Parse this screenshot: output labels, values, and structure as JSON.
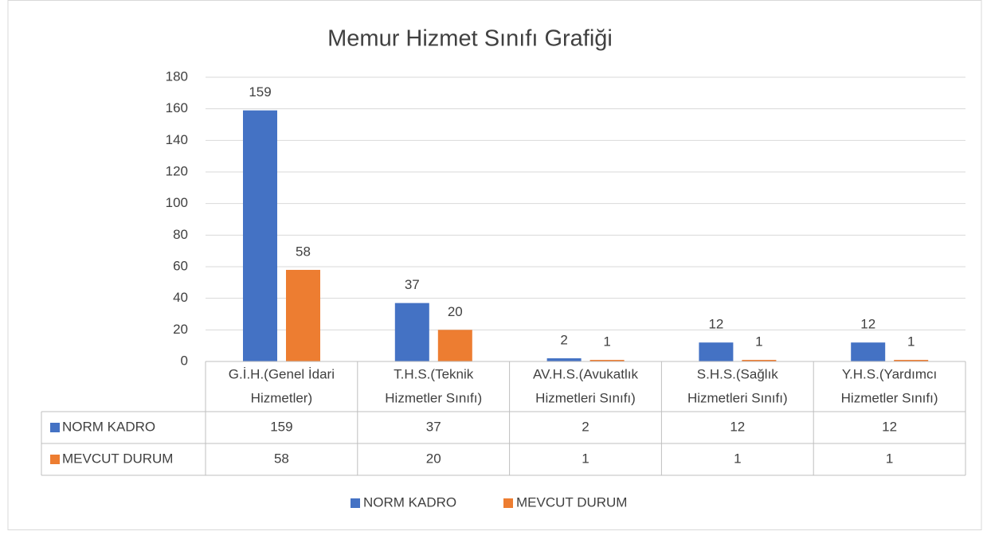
{
  "chart_data": {
    "type": "bar",
    "title": "Memur Hizmet Sınıfı Grafiği",
    "categories": [
      [
        "G.İ.H.(Genel İdari",
        "Hizmetler)"
      ],
      [
        "T.H.S.(Teknik",
        "Hizmetler Sınıfı)"
      ],
      [
        "AV.H.S.(Avukatlık",
        "Hizmetleri Sınıfı)"
      ],
      [
        "S.H.S.(Sağlık",
        "Hizmetleri Sınıfı)"
      ],
      [
        "Y.H.S.(Yardımcı",
        "Hizmetler Sınıfı)"
      ]
    ],
    "series": [
      {
        "name": "NORM KADRO",
        "color": "#4472c4",
        "values": [
          159,
          37,
          2,
          12,
          12
        ]
      },
      {
        "name": "MEVCUT DURUM",
        "color": "#ed7d31",
        "values": [
          58,
          20,
          1,
          1,
          1
        ]
      }
    ],
    "ylim": [
      0,
      180
    ],
    "yticks": [
      0,
      20,
      40,
      60,
      80,
      100,
      120,
      140,
      160,
      180
    ],
    "grid": true,
    "data_table": true,
    "legend": "bottom"
  }
}
